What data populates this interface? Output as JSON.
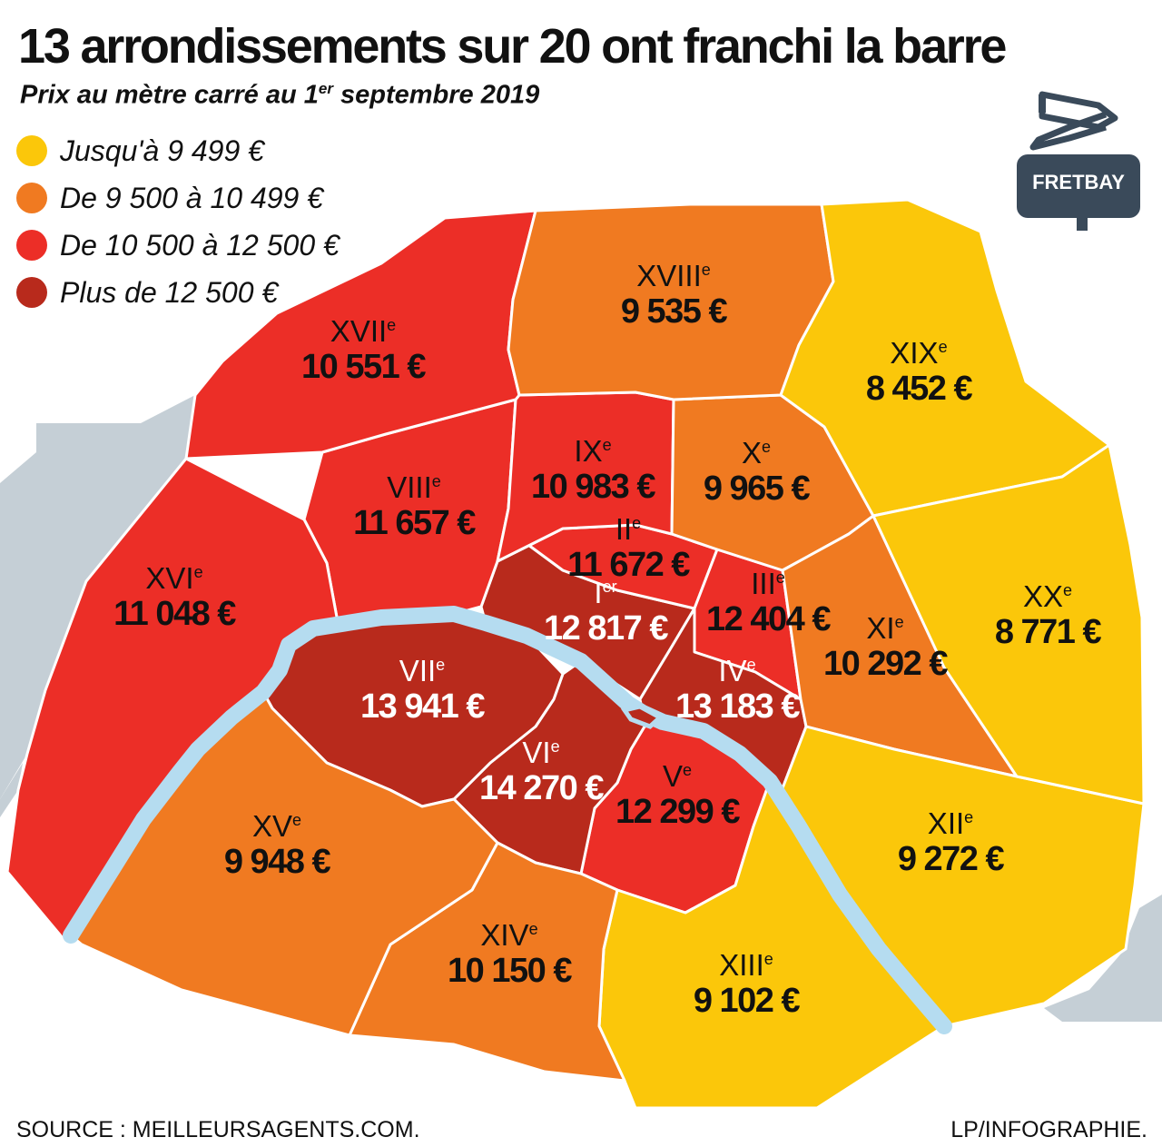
{
  "title": "13 arrondissements sur 20 ont franchi la barre",
  "subtitle": {
    "text": "Prix au mètre carré au 1",
    "sup": "er",
    "text_end": " septembre 2019"
  },
  "legend": [
    {
      "label": "Jusqu'à 9 499 €",
      "color": "#fbc70a"
    },
    {
      "label": "De 9 500 à 10 499 €",
      "color": "#f07a21"
    },
    {
      "label": "De 10 500 à 12 500 €",
      "color": "#ec2e27"
    },
    {
      "label": "Plus de 12 500 €",
      "color": "#b82a1c"
    }
  ],
  "colors": {
    "outside": "#c5cfd6",
    "seine": "#b5dcf0",
    "border": "#ffffff"
  },
  "arrondissements": [
    {
      "id": "i",
      "num": "I",
      "sup": "er",
      "price": "12 817 €",
      "color": "#b82a1c",
      "text": "light"
    },
    {
      "id": "ii",
      "num": "II",
      "sup": "e",
      "price": "11 672 €",
      "color": "#ec2e27",
      "text": "dark"
    },
    {
      "id": "iii",
      "num": "III",
      "sup": "e",
      "price": "12 404 €",
      "color": "#ec2e27",
      "text": "dark"
    },
    {
      "id": "iv",
      "num": "IV",
      "sup": "e",
      "price": "13 183 €",
      "color": "#b82a1c",
      "text": "light"
    },
    {
      "id": "v",
      "num": "V",
      "sup": "e",
      "price": "12 299 €",
      "color": "#ec2e27",
      "text": "dark"
    },
    {
      "id": "vi",
      "num": "VI",
      "sup": "e",
      "price": "14 270 €",
      "color": "#b82a1c",
      "text": "light"
    },
    {
      "id": "vii",
      "num": "VII",
      "sup": "e",
      "price": "13 941 €",
      "color": "#b82a1c",
      "text": "light"
    },
    {
      "id": "viii",
      "num": "VIII",
      "sup": "e",
      "price": "11 657 €",
      "color": "#ec2e27",
      "text": "dark"
    },
    {
      "id": "ix",
      "num": "IX",
      "sup": "e",
      "price": "10 983 €",
      "color": "#ec2e27",
      "text": "dark"
    },
    {
      "id": "x",
      "num": "X",
      "sup": "e",
      "price": "9 965 €",
      "color": "#f07a21",
      "text": "dark"
    },
    {
      "id": "xi",
      "num": "XI",
      "sup": "e",
      "price": "10 292 €",
      "color": "#f07a21",
      "text": "dark"
    },
    {
      "id": "xii",
      "num": "XII",
      "sup": "e",
      "price": "9 272 €",
      "color": "#fbc70a",
      "text": "dark"
    },
    {
      "id": "xiii",
      "num": "XIII",
      "sup": "e",
      "price": "9 102 €",
      "color": "#fbc70a",
      "text": "dark"
    },
    {
      "id": "xiv",
      "num": "XIV",
      "sup": "e",
      "price": "10 150 €",
      "color": "#f07a21",
      "text": "dark"
    },
    {
      "id": "xv",
      "num": "XV",
      "sup": "e",
      "price": "9 948 €",
      "color": "#f07a21",
      "text": "dark"
    },
    {
      "id": "xvi",
      "num": "XVI",
      "sup": "e",
      "price": "11 048 €",
      "color": "#ec2e27",
      "text": "dark"
    },
    {
      "id": "xvii",
      "num": "XVII",
      "sup": "e",
      "price": "10 551 €",
      "color": "#ec2e27",
      "text": "dark"
    },
    {
      "id": "xviii",
      "num": "XVIII",
      "sup": "e",
      "price": "9 535 €",
      "color": "#f07a21",
      "text": "dark"
    },
    {
      "id": "xix",
      "num": "XIX",
      "sup": "e",
      "price": "8 452 €",
      "color": "#fbc70a",
      "text": "dark"
    },
    {
      "id": "xx",
      "num": "XX",
      "sup": "e",
      "price": "8 771 €",
      "color": "#fbc70a",
      "text": "dark"
    }
  ],
  "logo": {
    "text": "FRETBAY",
    "color": "#3a4a5a",
    "icon": "signpost-icon"
  },
  "source": "SOURCE : MEILLEURSAGENTS.COM.",
  "credit": "LP/INFOGRAPHIE."
}
